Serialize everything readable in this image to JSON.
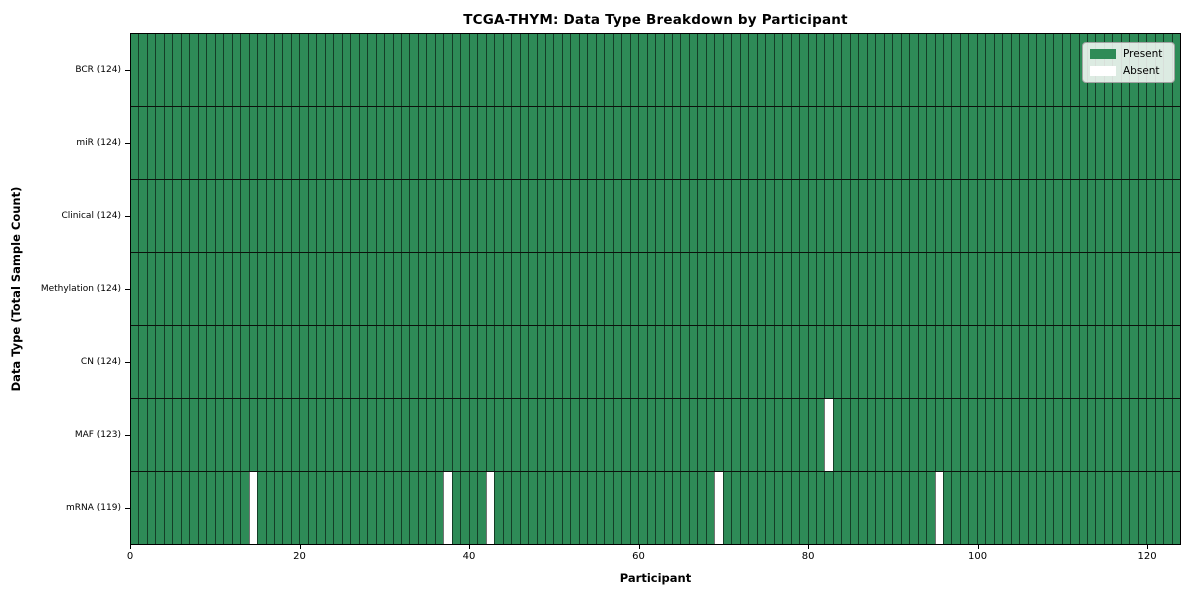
{
  "figure": {
    "title": "TCGA-THYM: Data Type Breakdown by Participant",
    "xlabel": "Participant",
    "ylabel": "Data Type (Total Sample Count)"
  },
  "colors": {
    "present": "#2e8b57",
    "absent": "#ffffff",
    "bar_edge": "rgba(0,0,0,0.55)",
    "row_divider": "#0c120d",
    "axis": "#000000",
    "legend_bg": "rgba(250,252,250,0.85)",
    "legend_border": "#a3a3a3"
  },
  "chart_data": {
    "type": "heatmap",
    "title": "TCGA-THYM: Data Type Breakdown by Participant",
    "xlabel": "Participant",
    "ylabel": "Data Type (Total Sample Count)",
    "n_participants": 124,
    "x_min": 0,
    "x_max": 124,
    "x_ticks": [
      0,
      20,
      40,
      60,
      80,
      100,
      120
    ],
    "grid": false,
    "legend_position": "upper-right",
    "legend_items": [
      {
        "label": "Present",
        "color": "#2e8b57"
      },
      {
        "label": "Absent",
        "color": "#ffffff"
      }
    ],
    "value_meaning": {
      "present": 1,
      "absent": 0
    },
    "rows": [
      {
        "label": "BCR (124)",
        "data_type": "BCR",
        "count": 124,
        "absent_participants": []
      },
      {
        "label": "miR (124)",
        "data_type": "miR",
        "count": 124,
        "absent_participants": []
      },
      {
        "label": "Clinical (124)",
        "data_type": "Clinical",
        "count": 124,
        "absent_participants": []
      },
      {
        "label": "Methylation (124)",
        "data_type": "Methylation",
        "count": 124,
        "absent_participants": []
      },
      {
        "label": "CN (124)",
        "data_type": "CN",
        "count": 124,
        "absent_participants": []
      },
      {
        "label": "MAF (123)",
        "data_type": "MAF",
        "count": 123,
        "absent_participants": [
          82
        ]
      },
      {
        "label": "mRNA (119)",
        "data_type": "mRNA",
        "count": 119,
        "absent_participants": [
          14,
          37,
          42,
          69,
          95
        ]
      }
    ]
  }
}
